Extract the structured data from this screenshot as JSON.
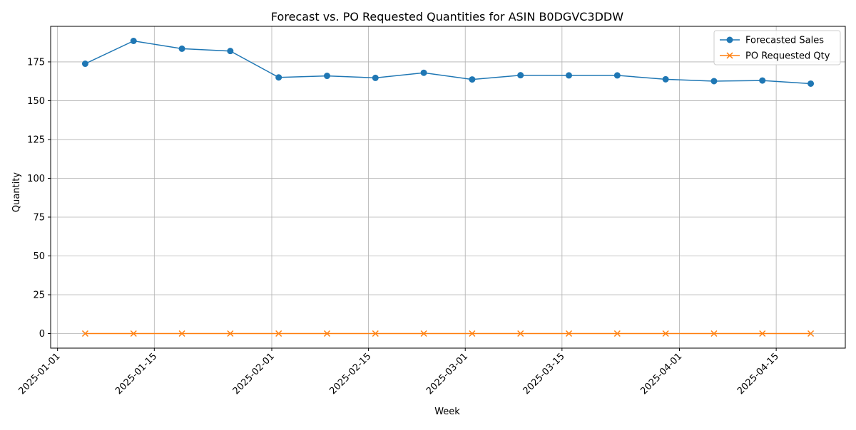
{
  "chart_data": {
    "type": "line",
    "title": "Forecast vs. PO Requested Quantities for ASIN B0DGVC3DDW",
    "xlabel": "Week",
    "ylabel": "Quantity",
    "x": [
      "2025-01-05",
      "2025-01-12",
      "2025-01-19",
      "2025-01-26",
      "2025-02-02",
      "2025-02-09",
      "2025-02-16",
      "2025-02-23",
      "2025-03-02",
      "2025-03-09",
      "2025-03-16",
      "2025-03-23",
      "2025-03-30",
      "2025-04-06",
      "2025-04-13",
      "2025-04-20"
    ],
    "series": [
      {
        "name": "Forecasted Sales",
        "color": "#1f77b4",
        "marker": "circle",
        "values": [
          173.8,
          188.5,
          183.5,
          182.0,
          165.0,
          166.0,
          164.7,
          168.0,
          163.7,
          166.4,
          166.3,
          166.3,
          163.8,
          162.6,
          163.0,
          161.0
        ]
      },
      {
        "name": "PO Requested Qty",
        "color": "#ff7f0e",
        "marker": "x",
        "values": [
          0,
          0,
          0,
          0,
          0,
          0,
          0,
          0,
          0,
          0,
          0,
          0,
          0,
          0,
          0,
          0
        ]
      }
    ],
    "xlim": [
      "2024-12-31",
      "2025-04-25"
    ],
    "ylim": [
      -9.4,
      197.9
    ],
    "xticks": [
      "2025-01-01",
      "2025-01-15",
      "2025-02-01",
      "2025-02-15",
      "2025-03-01",
      "2025-03-15",
      "2025-04-01",
      "2025-04-15"
    ],
    "yticks": [
      0,
      25,
      50,
      75,
      100,
      125,
      150,
      175
    ],
    "grid": true,
    "legend_position": "top-right"
  }
}
